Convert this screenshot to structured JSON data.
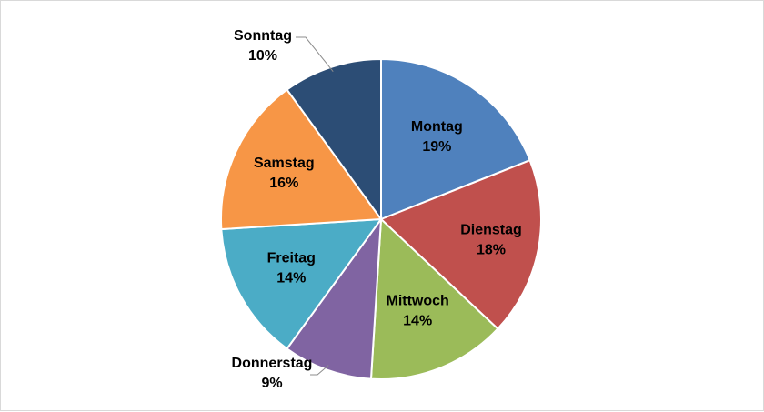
{
  "chart_data": {
    "type": "pie",
    "title": "",
    "slices": [
      {
        "label": "Montag",
        "value": 19,
        "display": "19%",
        "color": "#4F81BD"
      },
      {
        "label": "Dienstag",
        "value": 18,
        "display": "18%",
        "color": "#C0504D"
      },
      {
        "label": "Mittwoch",
        "value": 14,
        "display": "14%",
        "color": "#9BBB59"
      },
      {
        "label": "Donnerstag",
        "value": 9,
        "display": "9%",
        "color": "#8064A2"
      },
      {
        "label": "Freitag",
        "value": 14,
        "display": "14%",
        "color": "#4BACC6"
      },
      {
        "label": "Samstag",
        "value": 16,
        "display": "16%",
        "color": "#F79646"
      },
      {
        "label": "Sonntag",
        "value": 10,
        "display": "10%",
        "color": "#2C4D75"
      }
    ],
    "label_color": "#000000"
  }
}
